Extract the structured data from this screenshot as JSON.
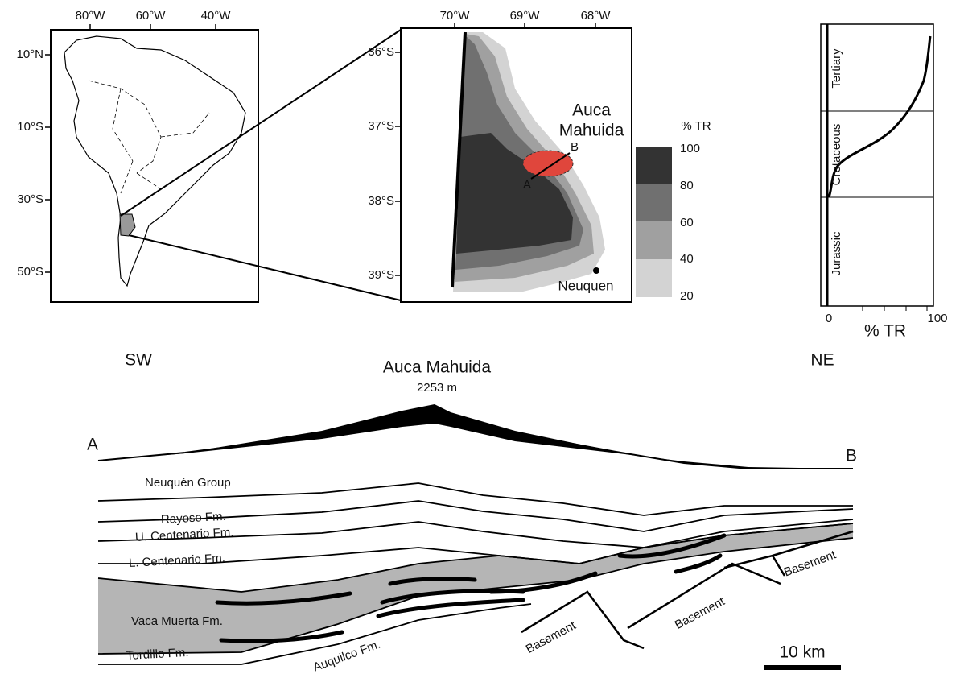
{
  "location_map": {
    "lon_labels": [
      "80°W",
      "60°W",
      "40°W"
    ],
    "lat_labels": [
      "10°N",
      "10°S",
      "30°S",
      "50°S"
    ]
  },
  "inset_map": {
    "lon_labels": [
      "70°W",
      "69°W",
      "68°W"
    ],
    "lat_labels": [
      "36°S",
      "37°S",
      "38°S",
      "39°S"
    ],
    "area_label": [
      "Auca",
      "Mahuida"
    ],
    "point_a": "A",
    "point_b": "B",
    "city": "Neuquen"
  },
  "legend": {
    "title": "% TR",
    "labels": [
      "100",
      "80",
      "60",
      "40",
      "20"
    ]
  },
  "tr_profile": {
    "periods": [
      "Tertiary",
      "Cretaceous",
      "Jurassic"
    ],
    "x_labels": [
      "0",
      "100"
    ],
    "x_title": "% TR"
  },
  "cross_section": {
    "left_direction": "SW",
    "right_direction": "NE",
    "peak_name": "Auca Mahuida",
    "peak_elevation": "2253 m",
    "point_a": "A",
    "point_b": "B",
    "units": [
      "Neuquén Group",
      "Rayoso Fm.",
      "U. Centenario Fm.",
      "L. Centenario Fm.",
      "Vaca Muerta Fm.",
      "Tordillo Fm.",
      "Auquilco Fm."
    ],
    "basement_labels": [
      "Basement",
      "Basement",
      "Basement"
    ],
    "scale_bar": "10 km"
  }
}
